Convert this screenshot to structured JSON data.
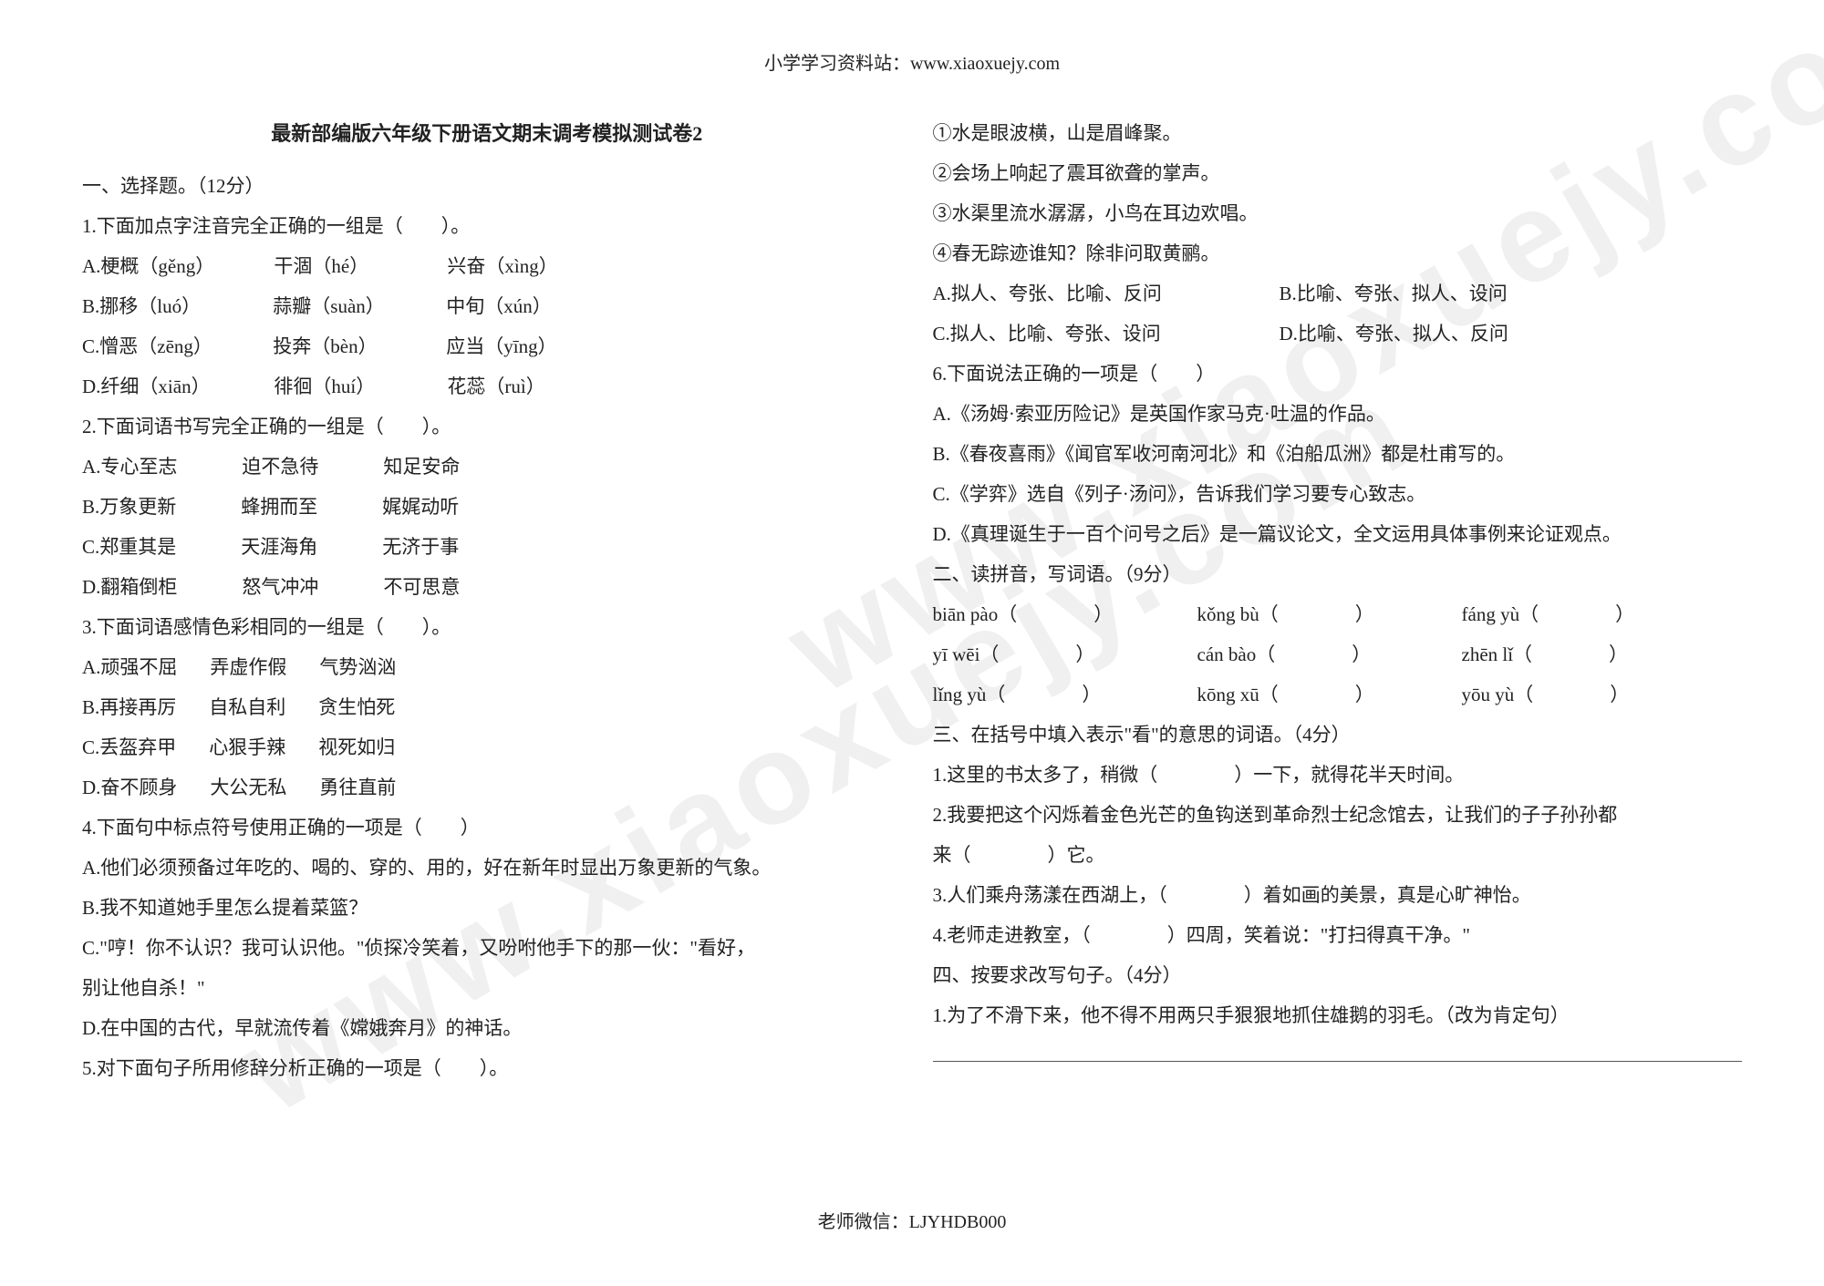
{
  "header": "小学学习资料站：www.xiaoxuejy.com",
  "footer": "老师微信：LJYHDB000",
  "watermark": "www.xiaoxuejy.com",
  "title": "最新部编版六年级下册语文期末调考模拟测试卷2",
  "s1": {
    "head": "一、选择题。（12分）",
    "q1": {
      "stem": "1.下面加点字注音完全正确的一组是（　　）。",
      "a": {
        "p": "A.",
        "w1": "梗概（gěng）",
        "w2": "干涸（hé）",
        "w3": "兴奋（xìng）"
      },
      "b": {
        "p": "B.",
        "w1": "挪移（luó）",
        "w2": "蒜瓣（suàn）",
        "w3": "中旬（xún）"
      },
      "c": {
        "p": "C.",
        "w1": "憎恶（zēng）",
        "w2": "投奔（bèn）",
        "w3": "应当（yīng）"
      },
      "d": {
        "p": "D.",
        "w1": "纤细（xiān）",
        "w2": "徘徊（huí）",
        "w3": "花蕊（ruì）"
      }
    },
    "q2": {
      "stem": "2.下面词语书写完全正确的一组是（　　）。",
      "a": {
        "p": "A.",
        "w1": "专心至志",
        "w2": "迫不急待",
        "w3": "知足安命"
      },
      "b": {
        "p": "B.",
        "w1": "万象更新",
        "w2": "蜂拥而至",
        "w3": "娓娓动听"
      },
      "c": {
        "p": "C.",
        "w1": "郑重其是",
        "w2": "天涯海角",
        "w3": "无济于事"
      },
      "d": {
        "p": "D.",
        "w1": "翻箱倒柜",
        "w2": "怒气冲冲",
        "w3": "不可思意"
      }
    },
    "q3": {
      "stem": "3.下面词语感情色彩相同的一组是（　　）。",
      "a": {
        "p": "A.",
        "w1": "顽强不屈",
        "w2": "弄虚作假",
        "w3": "气势汹汹"
      },
      "b": {
        "p": "B.",
        "w1": "再接再厉",
        "w2": "自私自利",
        "w3": "贪生怕死"
      },
      "c": {
        "p": "C.",
        "w1": "丢盔弃甲",
        "w2": "心狠手辣",
        "w3": "视死如归"
      },
      "d": {
        "p": "D.",
        "w1": "奋不顾身",
        "w2": "大公无私",
        "w3": "勇往直前"
      }
    },
    "q4": {
      "stem": "4.下面句中标点符号使用正确的一项是（　　）",
      "a": "A.他们必须预备过年吃的、喝的、穿的、用的，好在新年时显出万象更新的气象。",
      "b": "B.我不知道她手里怎么提着菜篮？",
      "c1": "C.\"哼！你不认识？我可认识他。\"侦探冷笑着，又吩咐他手下的那一伙：\"看好，",
      "c2": "别让他自杀！\"",
      "d": "D.在中国的古代，早就流传着《嫦娥奔月》的神话。"
    },
    "q5": {
      "stem": "5.对下面句子所用修辞分析正确的一项是（　　）。",
      "l1": "①水是眼波横，山是眉峰聚。",
      "l2": "②会场上响起了震耳欲聋的掌声。",
      "l3": "③水渠里流水潺潺，小鸟在耳边欢唱。",
      "l4": "④春无踪迹谁知？除非问取黄鹂。",
      "a": "A.拟人、夸张、比喻、反问",
      "b": "B.比喻、夸张、拟人、设问",
      "c": "C.拟人、比喻、夸张、设问",
      "d": "D.比喻、夸张、拟人、反问"
    },
    "q6": {
      "stem": "6.下面说法正确的一项是（　　）",
      "a": "A.《汤姆·索亚历险记》是英国作家马克·吐温的作品。",
      "b": "B.《春夜喜雨》《闻官军收河南河北》和《泊船瓜洲》都是杜甫写的。",
      "c": "C.《学弈》选自《列子·汤问》，告诉我们学习要专心致志。",
      "d": "D.《真理诞生于一百个问号之后》是一篇议论文，全文运用具体事例来论证观点。"
    }
  },
  "s2": {
    "head": "二、读拼音，写词语。（9分）",
    "items": [
      {
        "py": "biān pào（　　　　）",
        "py2": "kǒng bù（　　　　）",
        "py3": "fáng yù（　　　　）"
      },
      {
        "py": "yī wēi（　　　　）",
        "py2": "cán bào（　　　　）",
        "py3": "zhēn lǐ（　　　　）"
      },
      {
        "py": "lǐng yù（　　　　）",
        "py2": "kōng xū（　　　　）",
        "py3": "yōu yù（　　　　）"
      }
    ]
  },
  "s3": {
    "head": "三、在括号中填入表示\"看\"的意思的词语。（4分）",
    "q1": "1.这里的书太多了，稍微（　　　　）一下，就得花半天时间。",
    "q2a": "2.我要把这个闪烁着金色光芒的鱼钩送到革命烈士纪念馆去，让我们的子子孙孙都",
    "q2b": "来（　　　　）它。",
    "q3": "3.人们乘舟荡漾在西湖上，（　　　　）着如画的美景，真是心旷神怡。",
    "q4": "4.老师走进教室，（　　　　）四周，笑着说：\"打扫得真干净。\""
  },
  "s4": {
    "head": "四、按要求改写句子。（4分）",
    "q1": "1.为了不滑下来，他不得不用两只手狠狠地抓住雄鹅的羽毛。（改为肯定句）"
  }
}
